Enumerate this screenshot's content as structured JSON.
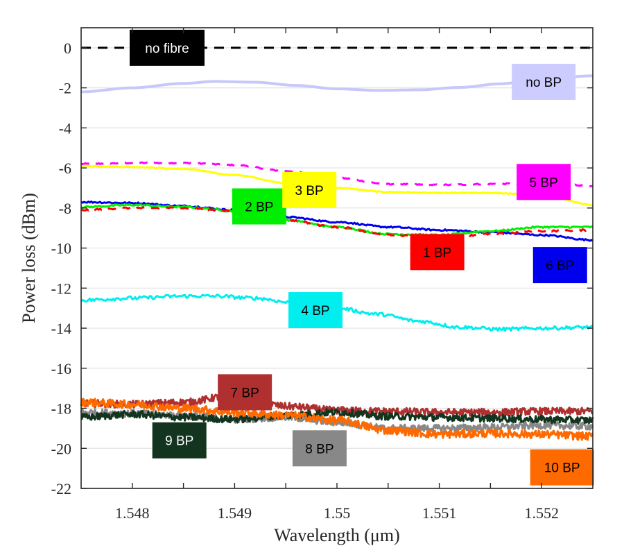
{
  "chart_data": {
    "type": "line",
    "title": "",
    "xlabel": "Wavelength (μm)",
    "ylabel": "Power loss (dBm)",
    "xlim": [
      1.5475,
      1.5525
    ],
    "ylim": [
      -22,
      1
    ],
    "grid": "horizontal",
    "legend": "inline boxed labels next to each curve",
    "x_ticks": [
      1.548,
      1.5485,
      1.549,
      1.5495,
      1.55,
      1.5505,
      1.551,
      1.5515,
      1.552
    ],
    "x_tick_labels": [
      "1.548",
      "",
      "1.549",
      "",
      "1.55",
      "",
      "1.551",
      "",
      "1.552"
    ],
    "y_ticks": [
      0,
      -2,
      -4,
      -6,
      -8,
      -10,
      -12,
      -14,
      -16,
      -18,
      -20,
      -22
    ],
    "y_tick_labels": [
      "0",
      "-2",
      "-4",
      "-6",
      "-8",
      "-10",
      "-12",
      "-14",
      "-16",
      "-18",
      "-20",
      "-22"
    ],
    "series": [
      {
        "name": "no fibre",
        "color": "#000000",
        "style": "dashed",
        "noise": 0,
        "x": [
          1.5475,
          1.5525
        ],
        "y": [
          0,
          0
        ],
        "label": {
          "text": "no fibre",
          "bg": "#000000",
          "fg": "#ffffff",
          "at": [
            1.54834,
            0.0
          ]
        }
      },
      {
        "name": "no BP",
        "color": "#c8c8f8",
        "style": "solid",
        "noise": 0,
        "x": [
          1.5475,
          1.548,
          1.5485,
          1.5488,
          1.5492,
          1.5496,
          1.55,
          1.5504,
          1.5508,
          1.5512,
          1.5516,
          1.552,
          1.5525
        ],
        "y": [
          -2.2,
          -2.0,
          -1.78,
          -1.68,
          -1.72,
          -1.88,
          -2.05,
          -2.13,
          -2.1,
          -1.98,
          -1.8,
          -1.55,
          -1.4
        ],
        "label": {
          "text": "no BP",
          "bg": "#ccccff",
          "fg": "#000000",
          "at": [
            1.55202,
            -1.7
          ]
        }
      },
      {
        "name": "1 BP",
        "color": "#ff0000",
        "style": "dashed",
        "noise": 0.04,
        "x": [
          1.5475,
          1.548,
          1.5485,
          1.549,
          1.5495,
          1.55,
          1.5505,
          1.551,
          1.5515,
          1.552,
          1.5525
        ],
        "y": [
          -8.1,
          -8.0,
          -8.0,
          -8.15,
          -8.6,
          -8.95,
          -9.35,
          -9.5,
          -9.3,
          -9.15,
          -9.1
        ],
        "label": {
          "text": "1 BP",
          "bg": "#ff0000",
          "fg": "#000000",
          "at": [
            1.55098,
            -10.2
          ]
        }
      },
      {
        "name": "2 BP",
        "color": "#00ee00",
        "style": "solid",
        "noise": 0.04,
        "x": [
          1.5475,
          1.548,
          1.5485,
          1.549,
          1.5495,
          1.55,
          1.5505,
          1.551,
          1.5515,
          1.552,
          1.5525
        ],
        "y": [
          -7.95,
          -7.85,
          -7.95,
          -8.15,
          -8.6,
          -8.95,
          -9.3,
          -9.35,
          -9.15,
          -8.95,
          -8.95
        ],
        "label": {
          "text": "2 BP",
          "bg": "#00ee00",
          "fg": "#000000",
          "at": [
            1.54924,
            -7.92
          ]
        }
      },
      {
        "name": "3 BP",
        "color": "#ffff00",
        "style": "solid",
        "noise": 0.02,
        "x": [
          1.5475,
          1.548,
          1.5485,
          1.549,
          1.5495,
          1.55,
          1.5505,
          1.551,
          1.5515,
          1.552,
          1.5525
        ],
        "y": [
          -5.9,
          -5.95,
          -6.05,
          -6.35,
          -6.75,
          -7.0,
          -7.2,
          -7.25,
          -7.25,
          -7.35,
          -7.85
        ],
        "label": {
          "text": "3 BP",
          "bg": "#ffff00",
          "fg": "#000000",
          "at": [
            1.54973,
            -7.1
          ]
        }
      },
      {
        "name": "4 BP",
        "color": "#00eeee",
        "style": "solid",
        "noise": 0.09,
        "x": [
          1.5475,
          1.548,
          1.5485,
          1.5488,
          1.5492,
          1.5496,
          1.55,
          1.5504,
          1.5508,
          1.5512,
          1.5516,
          1.552,
          1.5525
        ],
        "y": [
          -12.6,
          -12.5,
          -12.4,
          -12.4,
          -12.5,
          -12.75,
          -13.0,
          -13.3,
          -13.65,
          -13.95,
          -14.05,
          -14.0,
          -13.95
        ],
        "label": {
          "text": "4 BP",
          "bg": "#00eeee",
          "fg": "#000000",
          "at": [
            1.54979,
            -13.1
          ]
        }
      },
      {
        "name": "5 BP",
        "color": "#ff00ff",
        "style": "dashed",
        "noise": 0.03,
        "x": [
          1.5475,
          1.548,
          1.5485,
          1.549,
          1.5495,
          1.55,
          1.5505,
          1.551,
          1.5515,
          1.552,
          1.5525
        ],
        "y": [
          -5.8,
          -5.75,
          -5.75,
          -5.85,
          -6.15,
          -6.5,
          -6.8,
          -6.85,
          -6.8,
          -6.75,
          -6.9
        ],
        "label": {
          "text": "5 BP",
          "bg": "#ff00ff",
          "fg": "#000000",
          "at": [
            1.55202,
            -6.7
          ]
        }
      },
      {
        "name": "6 BP",
        "color": "#0000ee",
        "style": "solid",
        "noise": 0.04,
        "x": [
          1.5475,
          1.548,
          1.5485,
          1.549,
          1.5495,
          1.55,
          1.5505,
          1.551,
          1.5515,
          1.552,
          1.5525
        ],
        "y": [
          -7.7,
          -7.75,
          -7.9,
          -8.1,
          -8.45,
          -8.7,
          -8.95,
          -9.1,
          -9.2,
          -9.35,
          -9.6
        ],
        "label": {
          "text": "6 BP",
          "bg": "#0000ee",
          "fg": "#000000",
          "at": [
            1.55218,
            -10.85
          ]
        }
      },
      {
        "name": "7 BP",
        "color": "#b03030",
        "style": "solid",
        "noise": 0.18,
        "x": [
          1.5475,
          1.548,
          1.5485,
          1.549,
          1.5495,
          1.55,
          1.5505,
          1.551,
          1.5515,
          1.552,
          1.5525
        ],
        "y": [
          -17.75,
          -17.8,
          -17.7,
          -17.35,
          -17.9,
          -18.1,
          -18.15,
          -18.2,
          -18.2,
          -18.15,
          -18.15
        ],
        "label": {
          "text": "7 BP",
          "bg": "#b03030",
          "fg": "#000000",
          "at": [
            1.5491,
            -17.2
          ]
        }
      },
      {
        "name": "8 BP",
        "color": "#888888",
        "style": "solid",
        "noise": 0.18,
        "x": [
          1.5475,
          1.548,
          1.5485,
          1.549,
          1.5495,
          1.55,
          1.5505,
          1.551,
          1.5515,
          1.552,
          1.5525
        ],
        "y": [
          -18.2,
          -18.25,
          -18.35,
          -18.55,
          -18.45,
          -18.7,
          -19.0,
          -19.0,
          -18.95,
          -18.85,
          -18.9
        ],
        "label": {
          "text": "8 BP",
          "bg": "#888888",
          "fg": "#000000",
          "at": [
            1.54983,
            -20.0
          ]
        }
      },
      {
        "name": "9 BP",
        "color": "#13351f",
        "style": "solid",
        "noise": 0.18,
        "x": [
          1.5475,
          1.548,
          1.5485,
          1.549,
          1.5495,
          1.55,
          1.5505,
          1.551,
          1.5515,
          1.552,
          1.5525
        ],
        "y": [
          -18.45,
          -18.3,
          -18.45,
          -18.55,
          -18.35,
          -18.2,
          -18.4,
          -18.45,
          -18.5,
          -18.55,
          -18.6
        ],
        "label": {
          "text": "9 BP",
          "bg": "#13351f",
          "fg": "#ffffff",
          "at": [
            1.54846,
            -19.6
          ]
        }
      },
      {
        "name": "10 BP",
        "color": "#ff6a00",
        "style": "solid",
        "noise": 0.2,
        "x": [
          1.5475,
          1.548,
          1.5485,
          1.549,
          1.5495,
          1.55,
          1.5505,
          1.551,
          1.5515,
          1.552,
          1.5525
        ],
        "y": [
          -17.7,
          -17.8,
          -18.0,
          -18.2,
          -18.35,
          -18.6,
          -19.1,
          -19.3,
          -19.25,
          -19.3,
          -19.4
        ],
        "label": {
          "text": "10 BP",
          "bg": "#ff6a00",
          "fg": "#000000",
          "at": [
            1.5522,
            -20.95
          ]
        }
      }
    ]
  }
}
